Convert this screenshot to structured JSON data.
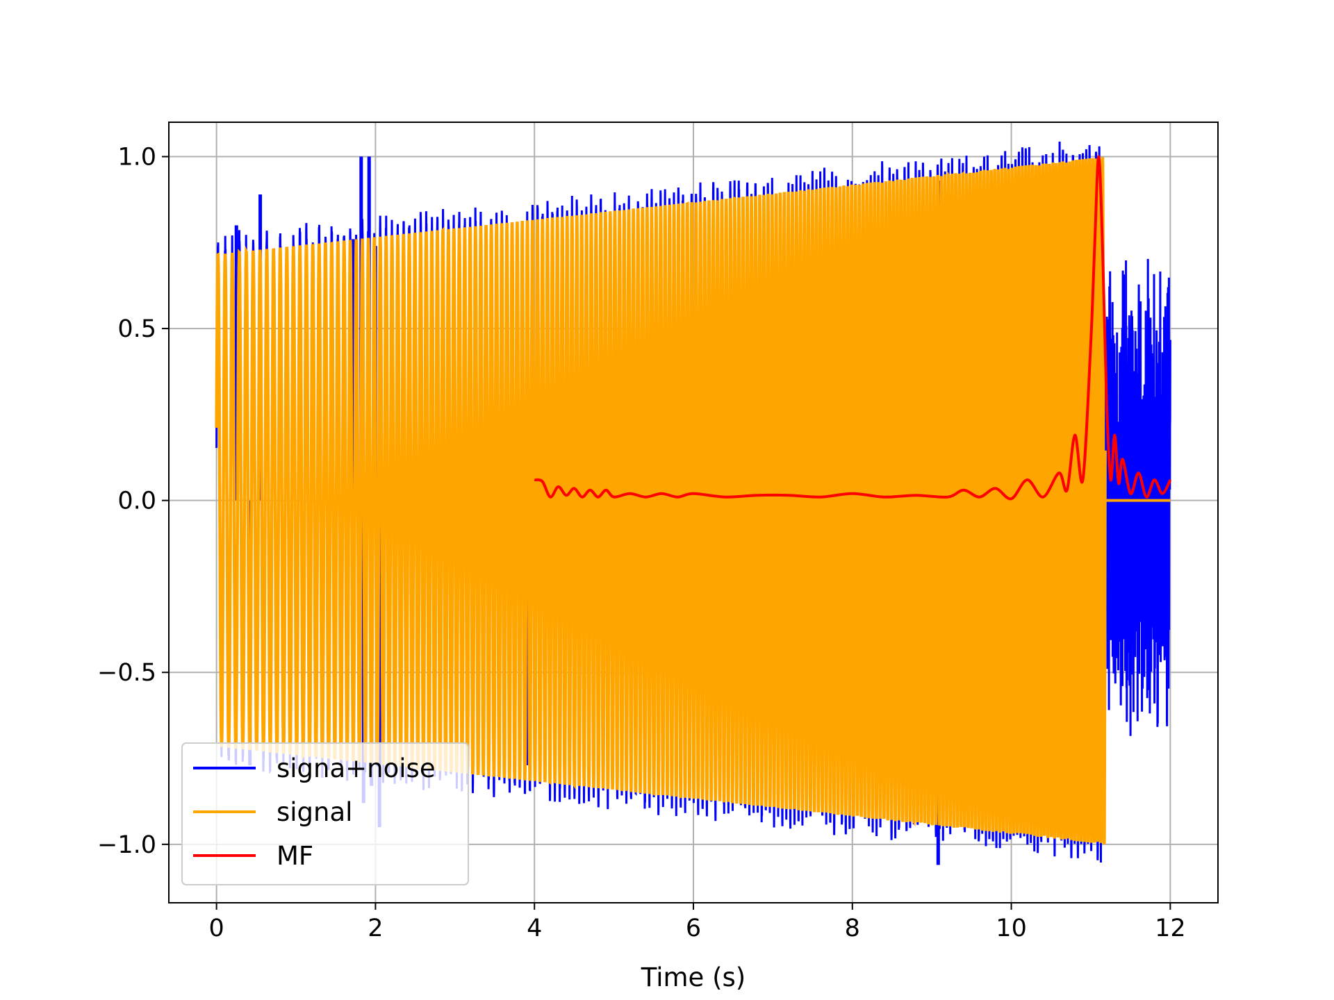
{
  "chart_data": {
    "type": "line",
    "title": "",
    "xlabel": "Time (s)",
    "ylabel": "",
    "xlim": [
      -0.6,
      12.6
    ],
    "ylim": [
      -1.17,
      1.1
    ],
    "grid": true,
    "legend": {
      "placement": "lower-left"
    },
    "x_ticks": [
      {
        "value": 0,
        "label": "0"
      },
      {
        "value": 2,
        "label": "2"
      },
      {
        "value": 4,
        "label": "4"
      },
      {
        "value": 6,
        "label": "6"
      },
      {
        "value": 8,
        "label": "8"
      },
      {
        "value": 10,
        "label": "10"
      },
      {
        "value": 12,
        "label": "12"
      }
    ],
    "y_ticks": [
      {
        "value": -1.0,
        "label": "−1.0"
      },
      {
        "value": -0.5,
        "label": "−0.5"
      },
      {
        "value": 0.0,
        "label": "0.0"
      },
      {
        "value": 0.5,
        "label": "0.5"
      },
      {
        "value": 1.0,
        "label": "1.0"
      }
    ],
    "series": [
      {
        "name": "signa+noise",
        "color": "#0000ff",
        "kind": "noisy-chirp",
        "x_range": [
          0,
          12
        ],
        "envelope": [
          [
            0,
            0.72
          ],
          [
            11.18,
            1.0
          ]
        ],
        "spikes": [
          [
            0.25,
            0.8
          ],
          [
            0.55,
            0.89
          ],
          [
            1.72,
            0.76
          ],
          [
            1.82,
            1.0
          ],
          [
            1.92,
            1.0
          ],
          [
            2.0,
            0.74
          ],
          [
            9.1,
            0.93
          ],
          [
            9.08,
            -1.06
          ],
          [
            2.05,
            -0.95
          ],
          [
            1.85,
            -0.88
          ],
          [
            1.95,
            -0.83
          ],
          [
            0.42,
            -0.77
          ],
          [
            3.9,
            -0.77
          ]
        ],
        "tail_x_range": [
          11.18,
          12
        ],
        "tail_range": [
          -0.7,
          0.72
        ]
      },
      {
        "name": "signal",
        "color": "#ffa500",
        "kind": "chirp",
        "x_range": [
          0,
          11.18
        ],
        "envelope": [
          [
            0,
            0.715
          ],
          [
            11.18,
            1.0
          ]
        ],
        "after": [
          [
            11.18,
            0.0
          ],
          [
            12.0,
            0.0
          ]
        ]
      },
      {
        "name": "MF",
        "color": "#ff0000",
        "kind": "matched-filter",
        "x": [
          4.0,
          4.1,
          4.2,
          4.3,
          4.4,
          4.5,
          4.6,
          4.7,
          4.8,
          4.9,
          5.0,
          5.2,
          5.4,
          5.6,
          5.8,
          6.0,
          6.4,
          6.8,
          7.2,
          7.6,
          8.0,
          8.4,
          8.8,
          9.2,
          9.4,
          9.6,
          9.8,
          10.0,
          10.2,
          10.4,
          10.6,
          10.7,
          10.8,
          10.9,
          11.0,
          11.05,
          11.1,
          11.15,
          11.2,
          11.25,
          11.3,
          11.35,
          11.4,
          11.5,
          11.6,
          11.7,
          11.8,
          11.9,
          12.0
        ],
        "y": [
          0.06,
          0.055,
          0.01,
          0.04,
          0.015,
          0.035,
          0.01,
          0.03,
          0.01,
          0.03,
          0.01,
          0.02,
          0.01,
          0.02,
          0.01,
          0.02,
          0.01,
          0.015,
          0.015,
          0.01,
          0.02,
          0.01,
          0.015,
          0.01,
          0.03,
          0.01,
          0.035,
          0.005,
          0.06,
          0.01,
          0.08,
          0.03,
          0.19,
          0.06,
          0.46,
          0.75,
          1.0,
          0.72,
          0.28,
          0.06,
          0.19,
          0.05,
          0.12,
          0.02,
          0.08,
          0.01,
          0.06,
          0.02,
          0.06
        ]
      }
    ]
  }
}
